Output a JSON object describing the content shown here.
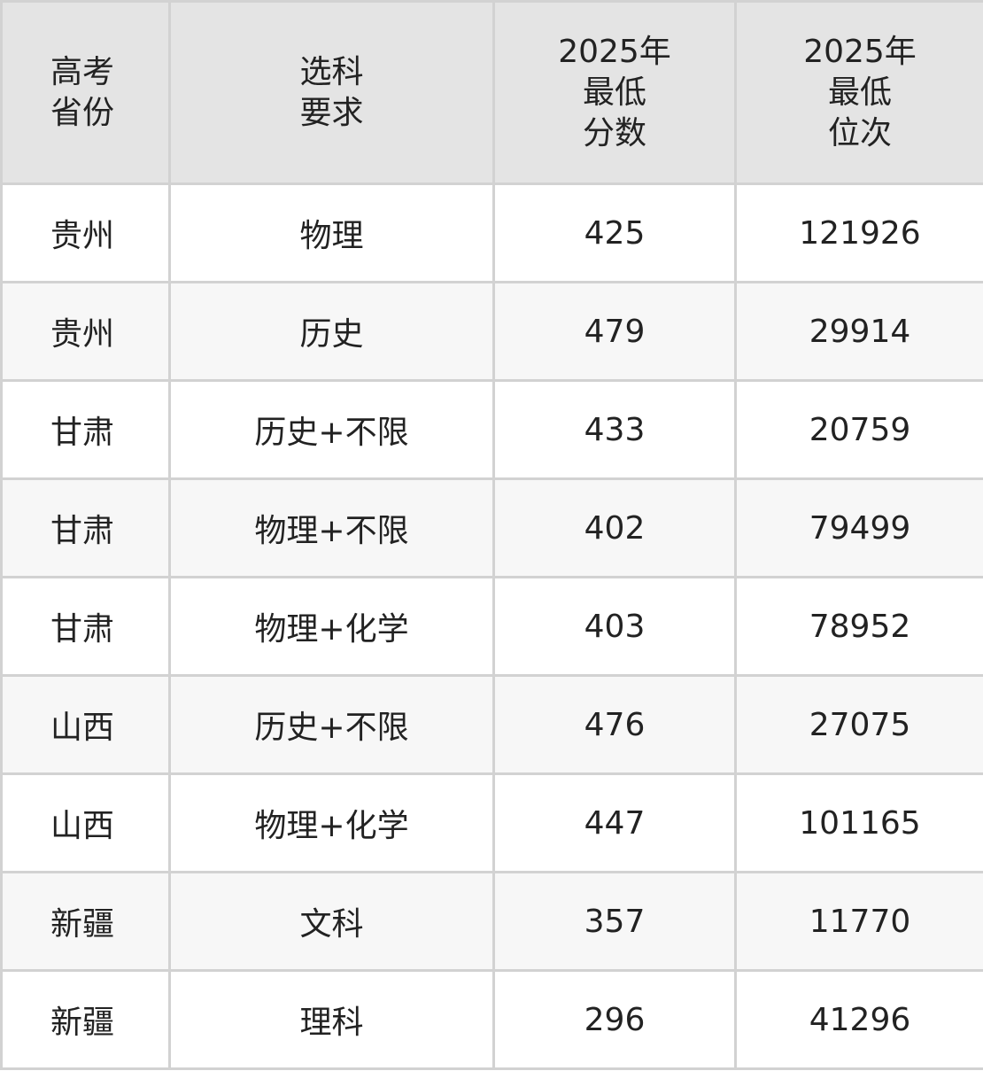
{
  "header": [
    [
      "高考",
      "省份"
    ],
    [
      "选科",
      "要求"
    ],
    [
      "2025年",
      "最低",
      "分数"
    ],
    [
      "2025年",
      "最低",
      "位次"
    ]
  ],
  "rows": [
    [
      "贵州",
      "物理",
      "425",
      "121926"
    ],
    [
      "贵州",
      "历史",
      "479",
      "29914"
    ],
    [
      "甘肃",
      "历史+不限",
      "433",
      "20759"
    ],
    [
      "甘肃",
      "物理+不限",
      "402",
      "79499"
    ],
    [
      "甘肃",
      "物理+化学",
      "403",
      "78952"
    ],
    [
      "山西",
      "历史+不限",
      "476",
      "27075"
    ],
    [
      "山西",
      "物理+化学",
      "447",
      "101165"
    ],
    [
      "新疆",
      "文科",
      "357",
      "11770"
    ],
    [
      "新疆",
      "理科",
      "296",
      "41296"
    ]
  ]
}
